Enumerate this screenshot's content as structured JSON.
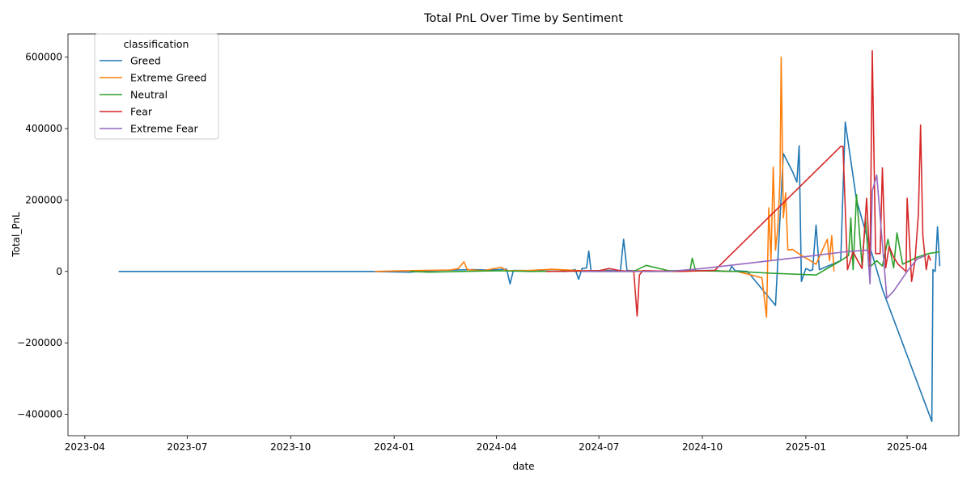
{
  "chart_data": {
    "type": "line",
    "title": "Total PnL Over Time by Sentiment",
    "xlabel": "date",
    "ylabel": "Total_PnL",
    "x_tick_labels": [
      "2023-04",
      "2023-07",
      "2023-10",
      "2024-01",
      "2024-04",
      "2024-07",
      "2024-10",
      "2025-01",
      "2025-04"
    ],
    "x_tick_dates": [
      "2023-04-01",
      "2023-07-01",
      "2023-10-01",
      "2024-01-01",
      "2024-04-01",
      "2024-07-01",
      "2024-10-01",
      "2025-01-01",
      "2025-04-01"
    ],
    "y_ticks": [
      -400000,
      -200000,
      0,
      200000,
      400000,
      600000
    ],
    "y_tick_labels": [
      "−400000",
      "−200000",
      "0",
      "200000",
      "400000",
      "600000"
    ],
    "xlim": [
      "2023-03-17",
      "2025-05-17"
    ],
    "ylim": [
      -460000,
      665000
    ],
    "legend": {
      "title": "classification",
      "position": "top-left"
    },
    "series": [
      {
        "name": "Greed",
        "color": "#1f77b4",
        "points": [
          [
            "2023-05-01",
            0
          ],
          [
            "2023-12-10",
            0
          ],
          [
            "2024-01-15",
            -2000
          ],
          [
            "2024-02-10",
            3000
          ],
          [
            "2024-03-10",
            5000
          ],
          [
            "2024-03-25",
            4000
          ],
          [
            "2024-04-10",
            6000
          ],
          [
            "2024-04-13",
            -35000
          ],
          [
            "2024-04-16",
            3000
          ],
          [
            "2024-05-01",
            2000
          ],
          [
            "2024-06-01",
            0
          ],
          [
            "2024-06-10",
            5000
          ],
          [
            "2024-06-13",
            -22000
          ],
          [
            "2024-06-16",
            8000
          ],
          [
            "2024-06-20",
            10000
          ],
          [
            "2024-06-22",
            57000
          ],
          [
            "2024-06-24",
            2000
          ],
          [
            "2024-07-10",
            3000
          ],
          [
            "2024-07-20",
            0
          ],
          [
            "2024-07-23",
            90000
          ],
          [
            "2024-07-26",
            3000
          ],
          [
            "2024-08-15",
            0
          ],
          [
            "2024-09-25",
            2000
          ],
          [
            "2024-10-10",
            3000
          ],
          [
            "2024-10-25",
            0
          ],
          [
            "2024-10-27",
            15000
          ],
          [
            "2024-10-30",
            2000
          ],
          [
            "2024-11-10",
            0
          ],
          [
            "2024-12-05",
            -95000
          ],
          [
            "2024-12-12",
            330000
          ],
          [
            "2024-12-20",
            280000
          ],
          [
            "2024-12-24",
            250000
          ],
          [
            "2024-12-26",
            352000
          ],
          [
            "2024-12-28",
            -28000
          ],
          [
            "2025-01-01",
            8000
          ],
          [
            "2025-01-05",
            2000
          ],
          [
            "2025-01-07",
            5000
          ],
          [
            "2025-01-10",
            130000
          ],
          [
            "2025-01-13",
            5000
          ],
          [
            "2025-02-01",
            30000
          ],
          [
            "2025-02-05",
            418000
          ],
          [
            "2025-02-15",
            200000
          ],
          [
            "2025-02-25",
            90000
          ],
          [
            "2025-03-10",
            -50000
          ],
          [
            "2025-04-23",
            -420000
          ],
          [
            "2025-04-24",
            5000
          ],
          [
            "2025-04-26",
            0
          ],
          [
            "2025-04-28",
            125000
          ],
          [
            "2025-04-30",
            15000
          ]
        ]
      },
      {
        "name": "Extreme Greed",
        "color": "#ff7f0e",
        "points": [
          [
            "2023-12-15",
            0
          ],
          [
            "2024-01-10",
            2000
          ],
          [
            "2024-02-20",
            4000
          ],
          [
            "2024-02-27",
            8000
          ],
          [
            "2024-03-03",
            27000
          ],
          [
            "2024-03-06",
            5000
          ],
          [
            "2024-03-20",
            2000
          ],
          [
            "2024-04-05",
            12000
          ],
          [
            "2024-04-10",
            2000
          ],
          [
            "2024-05-01",
            3000
          ],
          [
            "2024-05-20",
            6000
          ],
          [
            "2024-06-10",
            3000
          ],
          [
            "2024-06-25",
            2000
          ],
          [
            "2024-07-15",
            0
          ],
          [
            "2024-08-10",
            2000
          ],
          [
            "2024-09-05",
            0
          ],
          [
            "2024-10-05",
            2000
          ],
          [
            "2024-11-01",
            0
          ],
          [
            "2024-11-23",
            -18000
          ],
          [
            "2024-11-27",
            -128000
          ],
          [
            "2024-11-29",
            178000
          ],
          [
            "2024-12-01",
            30000
          ],
          [
            "2024-12-03",
            292000
          ],
          [
            "2024-12-05",
            60000
          ],
          [
            "2024-12-07",
            120000
          ],
          [
            "2024-12-09",
            260000
          ],
          [
            "2024-12-10",
            600000
          ],
          [
            "2024-12-12",
            150000
          ],
          [
            "2024-12-14",
            220000
          ],
          [
            "2024-12-16",
            60000
          ],
          [
            "2024-12-20",
            62000
          ],
          [
            "2024-12-28",
            45000
          ],
          [
            "2025-01-05",
            30000
          ],
          [
            "2025-01-10",
            20000
          ],
          [
            "2025-01-20",
            90000
          ],
          [
            "2025-01-22",
            30000
          ],
          [
            "2025-01-24",
            100000
          ],
          [
            "2025-01-26",
            0
          ]
        ]
      },
      {
        "name": "Neutral",
        "color": "#2ca02c",
        "points": [
          [
            "2024-01-15",
            0
          ],
          [
            "2024-02-01",
            -2000
          ],
          [
            "2024-03-01",
            0
          ],
          [
            "2024-04-01",
            2000
          ],
          [
            "2024-05-01",
            0
          ],
          [
            "2024-06-01",
            1000
          ],
          [
            "2024-07-01",
            0
          ],
          [
            "2024-08-01",
            0
          ],
          [
            "2024-08-12",
            17000
          ],
          [
            "2024-09-01",
            2000
          ],
          [
            "2024-09-20",
            3000
          ],
          [
            "2024-09-22",
            37000
          ],
          [
            "2024-09-25",
            2000
          ],
          [
            "2024-11-01",
            0
          ],
          [
            "2024-12-01",
            -5000
          ],
          [
            "2025-01-10",
            -10000
          ],
          [
            "2025-02-01",
            30000
          ],
          [
            "2025-02-08",
            45000
          ],
          [
            "2025-02-10",
            150000
          ],
          [
            "2025-02-12",
            5000
          ],
          [
            "2025-02-15",
            215000
          ],
          [
            "2025-02-20",
            15000
          ],
          [
            "2025-02-23",
            150000
          ],
          [
            "2025-02-26",
            10000
          ],
          [
            "2025-03-05",
            30000
          ],
          [
            "2025-03-10",
            15000
          ],
          [
            "2025-03-15",
            90000
          ],
          [
            "2025-03-20",
            10000
          ],
          [
            "2025-03-23",
            108000
          ],
          [
            "2025-03-28",
            20000
          ],
          [
            "2025-04-10",
            40000
          ],
          [
            "2025-04-20",
            50000
          ],
          [
            "2025-04-30",
            55000
          ]
        ]
      },
      {
        "name": "Fear",
        "color": "#d62728",
        "points": [
          [
            "2024-05-15",
            0
          ],
          [
            "2024-07-01",
            2000
          ],
          [
            "2024-07-10",
            8000
          ],
          [
            "2024-07-20",
            2000
          ],
          [
            "2024-08-01",
            0
          ],
          [
            "2024-08-04",
            -125000
          ],
          [
            "2024-08-06",
            -10000
          ],
          [
            "2024-08-09",
            2000
          ],
          [
            "2024-09-10",
            0
          ],
          [
            "2024-10-12",
            3000
          ],
          [
            "2025-02-01",
            350000
          ],
          [
            "2025-02-03",
            350000
          ],
          [
            "2025-02-07",
            5000
          ],
          [
            "2025-02-12",
            55000
          ],
          [
            "2025-02-16",
            30000
          ],
          [
            "2025-02-20",
            8000
          ],
          [
            "2025-02-24",
            205000
          ],
          [
            "2025-02-27",
            15000
          ],
          [
            "2025-03-01",
            618000
          ],
          [
            "2025-03-04",
            50000
          ],
          [
            "2025-03-08",
            50000
          ],
          [
            "2025-03-10",
            290000
          ],
          [
            "2025-03-13",
            10000
          ],
          [
            "2025-03-16",
            70000
          ],
          [
            "2025-03-20",
            40000
          ],
          [
            "2025-03-24",
            20000
          ],
          [
            "2025-03-31",
            0
          ],
          [
            "2025-04-01",
            205000
          ],
          [
            "2025-04-05",
            -28000
          ],
          [
            "2025-04-08",
            30000
          ],
          [
            "2025-04-11",
            160000
          ],
          [
            "2025-04-13",
            410000
          ],
          [
            "2025-04-15",
            100000
          ],
          [
            "2025-04-18",
            5000
          ],
          [
            "2025-04-20",
            45000
          ],
          [
            "2025-04-22",
            30000
          ]
        ]
      },
      {
        "name": "Extreme Fear",
        "color": "#9467bd",
        "points": [
          [
            "2024-06-15",
            0
          ],
          [
            "2024-09-01",
            0
          ],
          [
            "2024-10-01",
            8000
          ],
          [
            "2025-01-10",
            45000
          ],
          [
            "2025-02-05",
            55000
          ],
          [
            "2025-02-25",
            60000
          ],
          [
            "2025-02-27",
            -35000
          ],
          [
            "2025-03-01",
            225000
          ],
          [
            "2025-03-05",
            270000
          ],
          [
            "2025-03-14",
            -75000
          ],
          [
            "2025-03-20",
            -55000
          ],
          [
            "2025-04-01",
            0
          ],
          [
            "2025-04-10",
            35000
          ],
          [
            "2025-04-18",
            45000
          ]
        ]
      }
    ]
  }
}
